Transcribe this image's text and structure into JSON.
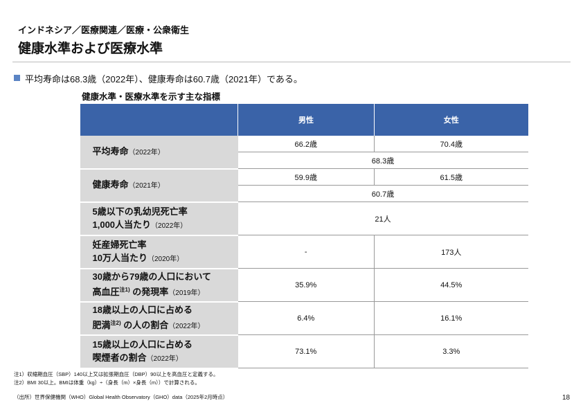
{
  "header": {
    "breadcrumb": "インドネシア／医療関連／医療・公衆衛生",
    "title": "健康水準および医療水準"
  },
  "summary": "平均寿命は68.3歳（2022年）、健康寿命は60.7歳（2021年）である。",
  "table": {
    "caption": "健康水準・医療水準を示す主な指標",
    "columns": [
      "男性",
      "女性"
    ],
    "rows": [
      {
        "lines": [
          [
            {
              "text": "平均寿命",
              "style": "bold"
            },
            {
              "text": "（2022年）",
              "style": "small"
            }
          ]
        ],
        "male": "66.2歳",
        "female": "70.4歳",
        "both": "68.3歳"
      },
      {
        "lines": [
          [
            {
              "text": "健康寿命",
              "style": "bold"
            },
            {
              "text": "（2021年）",
              "style": "small"
            }
          ]
        ],
        "male": "59.9歳",
        "female": "61.5歳",
        "both": "60.7歳"
      },
      {
        "lines": [
          [
            {
              "text": "5歳以下の乳幼児死亡率",
              "style": "bold"
            }
          ],
          [
            {
              "text": "1,000人当たり",
              "style": "bold"
            },
            {
              "text": "（2022年）",
              "style": "small"
            }
          ]
        ],
        "both": "21人"
      },
      {
        "lines": [
          [
            {
              "text": "妊産婦死亡率",
              "style": "bold"
            }
          ],
          [
            {
              "text": "10万人当たり",
              "style": "bold"
            },
            {
              "text": "（2020年）",
              "style": "small"
            }
          ]
        ],
        "male": "-",
        "female": "173人"
      },
      {
        "lines": [
          [
            {
              "text": "30歳から79歳の人口において",
              "style": "bold"
            }
          ],
          [
            {
              "text": "高血圧",
              "style": "bold"
            },
            {
              "text": "注1)",
              "style": "sup"
            },
            {
              "text": " の発現率",
              "style": "bold"
            },
            {
              "text": "（2019年）",
              "style": "small"
            }
          ]
        ],
        "male": "35.9%",
        "female": "44.5%"
      },
      {
        "lines": [
          [
            {
              "text": "18歳以上の人口に占める",
              "style": "bold"
            }
          ],
          [
            {
              "text": "肥満",
              "style": "bold"
            },
            {
              "text": "注2)",
              "style": "sup"
            },
            {
              "text": " の人の割合",
              "style": "bold"
            },
            {
              "text": "（2022年）",
              "style": "small"
            }
          ]
        ],
        "male": "6.4%",
        "female": "16.1%"
      },
      {
        "lines": [
          [
            {
              "text": "15歳以上の人口に占める",
              "style": "bold"
            }
          ],
          [
            {
              "text": "喫煙者の割合",
              "style": "bold"
            },
            {
              "text": "（2022年）",
              "style": "small"
            }
          ]
        ],
        "male": "73.1%",
        "female": "3.3%"
      }
    ]
  },
  "footnotes": [
    "注1）収縮期血圧（SBP）140以上又は拡張期血圧（DBP）90以上を高血圧と定義する。",
    "注2）BMI 30以上。BMIは体重（kg）÷（身長（m）×身長（m））で計算される。"
  ],
  "source": "（出所）世界保健機関（WHO）Global Health Observatory（GHO）data（2025年2月時点）",
  "page_number": "18"
}
